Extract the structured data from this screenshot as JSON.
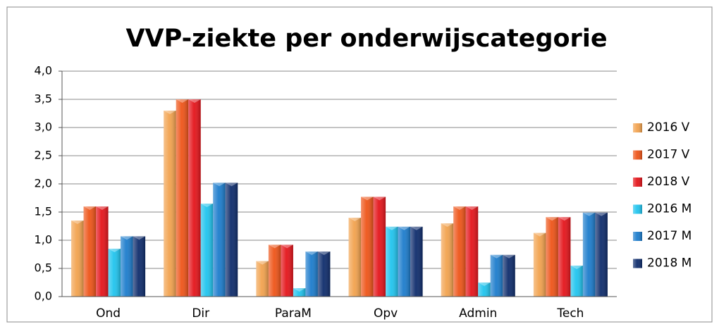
{
  "chart_data": {
    "type": "bar",
    "title": "VVP-ziekte per onderwijscategorie",
    "categories": [
      "Ond",
      "Dir",
      "ParaM",
      "Opv",
      "Admin",
      "Tech"
    ],
    "series": [
      {
        "name": "2016 V",
        "color": "#f2a24e",
        "values": [
          1.35,
          3.3,
          0.63,
          1.4,
          1.3,
          1.13
        ]
      },
      {
        "name": "2017 V",
        "color": "#ee5418",
        "values": [
          1.6,
          3.5,
          0.92,
          1.77,
          1.6,
          1.41
        ]
      },
      {
        "name": "2018 V",
        "color": "#e4141a",
        "values": [
          1.6,
          3.5,
          0.92,
          1.77,
          1.6,
          1.41
        ]
      },
      {
        "name": "2016 M",
        "color": "#20c4ee",
        "values": [
          0.85,
          1.65,
          0.15,
          1.24,
          0.25,
          0.55
        ]
      },
      {
        "name": "2017 M",
        "color": "#1c7ccc",
        "values": [
          1.07,
          2.02,
          0.8,
          1.24,
          0.74,
          1.49
        ]
      },
      {
        "name": "2018 M",
        "color": "#0e2c6c",
        "values": [
          1.07,
          2.02,
          0.8,
          1.24,
          0.74,
          1.49
        ]
      }
    ],
    "ylim": [
      0,
      4
    ],
    "yticks": [
      {
        "value": 0,
        "label": "0,0"
      },
      {
        "value": 0.5,
        "label": "0,5"
      },
      {
        "value": 1,
        "label": "1,0"
      },
      {
        "value": 1.5,
        "label": "1,5"
      },
      {
        "value": 2,
        "label": "2,0"
      },
      {
        "value": 2.5,
        "label": "2,5"
      },
      {
        "value": 3,
        "label": "3,0"
      },
      {
        "value": 3.5,
        "label": "3,5"
      },
      {
        "value": 4,
        "label": "4,0"
      }
    ],
    "grid": true,
    "legend": "right"
  }
}
